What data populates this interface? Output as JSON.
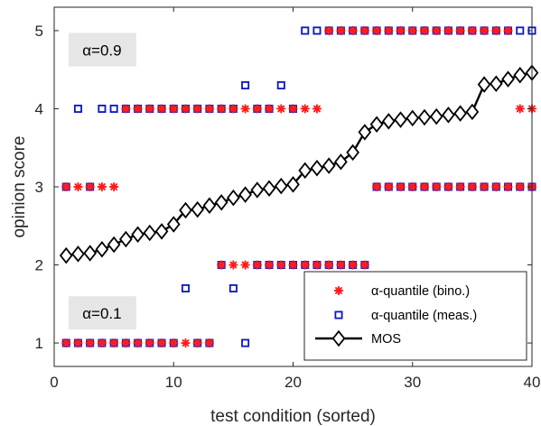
{
  "chart_data": {
    "type": "scatter",
    "title": "",
    "xlabel": "test condition (sorted)",
    "ylabel": "opinion score",
    "xlim": [
      0,
      40
    ],
    "ylim": [
      0.7,
      5.3
    ],
    "xticks": [
      0,
      10,
      20,
      30,
      40
    ],
    "yticks": [
      1,
      2,
      3,
      4,
      5
    ],
    "grid": false,
    "legend_position": "bottom-right",
    "colors": {
      "bino": "#ff1a1a",
      "meas": "#0a14c8",
      "mos": "#000000",
      "anno_bg": "#e6e6e6"
    },
    "annotations": [
      {
        "text": "α=0.9",
        "x": 4,
        "y": 4.75
      },
      {
        "text": "α=0.1",
        "x": 4,
        "y": 1.38
      }
    ],
    "x": [
      1,
      2,
      3,
      4,
      5,
      6,
      7,
      8,
      9,
      10,
      11,
      12,
      13,
      14,
      15,
      16,
      17,
      18,
      19,
      20,
      21,
      22,
      23,
      24,
      25,
      26,
      27,
      28,
      29,
      30,
      31,
      32,
      33,
      34,
      35,
      36,
      37,
      38,
      39,
      40
    ],
    "series": [
      {
        "name": "α-quantile (bino.)",
        "marker": "asterisk",
        "upper": [
          3,
          3,
          3,
          3,
          3,
          4,
          4,
          4,
          4,
          4,
          4,
          4,
          4,
          4,
          4,
          4,
          4,
          4,
          4,
          4,
          4,
          4,
          5,
          5,
          5,
          5,
          5,
          5,
          5,
          5,
          5,
          5,
          5,
          5,
          5,
          5,
          5,
          5,
          4,
          4
        ],
        "lower": [
          1,
          1,
          1,
          1,
          1,
          1,
          1,
          1,
          1,
          1,
          1,
          1,
          1,
          2,
          2,
          2,
          2,
          2,
          2,
          2,
          2,
          2,
          2,
          2,
          2,
          2,
          3,
          3,
          3,
          3,
          3,
          3,
          3,
          3,
          3,
          3,
          3,
          3,
          3,
          3
        ]
      },
      {
        "name": "α-quantile (meas.)",
        "marker": "square",
        "upper": [
          3,
          4,
          3,
          4,
          4,
          4,
          4,
          4,
          4,
          4,
          4,
          4,
          4,
          4,
          4,
          4.3,
          4,
          4,
          4.3,
          4,
          5,
          5,
          5,
          5,
          5,
          5,
          5,
          5,
          5,
          5,
          5,
          5,
          5,
          5,
          5,
          5,
          5,
          5,
          5,
          5
        ],
        "lower": [
          1,
          1,
          1,
          1,
          1,
          1,
          1,
          1,
          1,
          1,
          1.7,
          1,
          1,
          2,
          1.7,
          1,
          2,
          2,
          2,
          2,
          2,
          2,
          2,
          2,
          2,
          2,
          3,
          3,
          3,
          3,
          3,
          3,
          3,
          3,
          3,
          3,
          3,
          3,
          3,
          3
        ]
      },
      {
        "name": "MOS",
        "marker": "diamond-line",
        "values": [
          2.12,
          2.14,
          2.15,
          2.2,
          2.26,
          2.33,
          2.39,
          2.41,
          2.43,
          2.52,
          2.7,
          2.71,
          2.76,
          2.8,
          2.86,
          2.9,
          2.96,
          2.98,
          3.01,
          3.03,
          3.21,
          3.24,
          3.27,
          3.32,
          3.44,
          3.7,
          3.8,
          3.84,
          3.86,
          3.88,
          3.89,
          3.9,
          3.92,
          3.94,
          3.96,
          4.31,
          4.32,
          4.38,
          4.43,
          4.46
        ]
      }
    ]
  }
}
